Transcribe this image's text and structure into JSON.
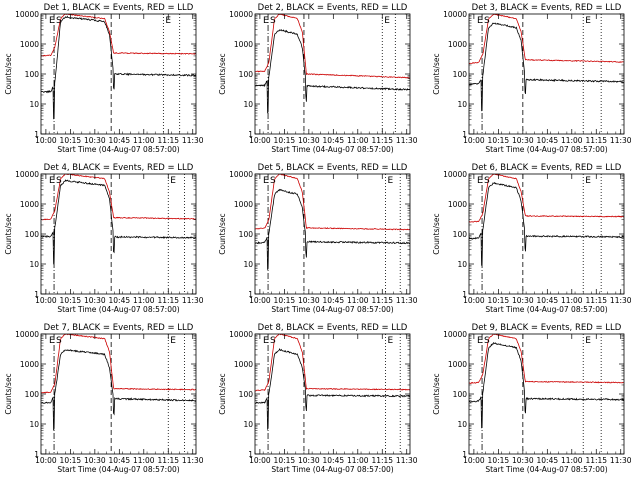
{
  "figure": {
    "background": "#ffffff",
    "colors": {
      "events": "#000000",
      "lld": "#cc0000",
      "axes": "#000000"
    }
  },
  "common": {
    "xlabel": "Start Time (04-Aug-07 08:57:00)",
    "ylabel": "Counts/sec",
    "xtick_labels": [
      "10:00",
      "10:15",
      "10:30",
      "10:45",
      "11:00",
      "11:15",
      "11:30"
    ],
    "ytick_labels": [
      "1",
      "10",
      "100",
      "1000",
      "10000"
    ],
    "markers": [
      "E",
      "S",
      "E"
    ]
  },
  "chart_data": [
    {
      "type": "line",
      "title": "Det 1, BLACK = Events, RED = LLD",
      "xlabel": "Start Time (04-Aug-07 08:57:00)",
      "ylabel": "Counts/sec",
      "xlim_minutes": [
        0,
        95
      ],
      "ylim": [
        1,
        10000
      ],
      "log_y": true,
      "vlines_minutes": {
        "dash_dot": 8,
        "dashed": [
          43
        ],
        "dotted": [
          75,
          85
        ]
      },
      "series": [
        {
          "name": "BLACK = Events",
          "color": "#000000",
          "levels": {
            "pre": 25,
            "peak": 8000,
            "post": 100,
            "end": 90
          }
        },
        {
          "name": "RED = LLD",
          "color": "#cc0000",
          "levels": {
            "pre": 400,
            "peak": 10000,
            "post": 500,
            "end": 470
          }
        }
      ]
    },
    {
      "type": "line",
      "title": "Det 2, BLACK = Events, RED = LLD",
      "xlabel": "Start Time (04-Aug-07 08:57:00)",
      "ylabel": "Counts/sec",
      "xlim_minutes": [
        0,
        95
      ],
      "ylim": [
        1,
        10000
      ],
      "log_y": true,
      "vlines_minutes": {
        "dash_dot": 8,
        "dashed": [
          30
        ],
        "dotted": [
          78,
          86
        ]
      },
      "series": [
        {
          "name": "BLACK = Events",
          "color": "#000000",
          "levels": {
            "pre": 40,
            "peak": 3000,
            "post": 40,
            "end": 30
          }
        },
        {
          "name": "RED = LLD",
          "color": "#cc0000",
          "levels": {
            "pre": 120,
            "peak": 10000,
            "post": 100,
            "end": 75
          }
        }
      ]
    },
    {
      "type": "line",
      "title": "Det 3, BLACK = Events, RED = LLD",
      "xlabel": "Start Time (04-Aug-07 08:57:00)",
      "ylabel": "Counts/sec",
      "xlim_minutes": [
        0,
        95
      ],
      "ylim": [
        1,
        10000
      ],
      "log_y": true,
      "vlines_minutes": {
        "dash_dot": 8,
        "dashed": [
          33
        ],
        "dotted": [
          70,
          81
        ]
      },
      "series": [
        {
          "name": "BLACK = Events",
          "color": "#000000",
          "levels": {
            "pre": 45,
            "peak": 5000,
            "post": 65,
            "end": 55
          }
        },
        {
          "name": "RED = LLD",
          "color": "#cc0000",
          "levels": {
            "pre": 230,
            "peak": 10000,
            "post": 300,
            "end": 250
          }
        }
      ]
    },
    {
      "type": "line",
      "title": "Det 4, BLACK = Events, RED = LLD",
      "xlabel": "Start Time (04-Aug-07 08:57:00)",
      "ylabel": "Counts/sec",
      "xlim_minutes": [
        0,
        95
      ],
      "ylim": [
        1,
        10000
      ],
      "log_y": true,
      "vlines_minutes": {
        "dash_dot": 8,
        "dashed": [
          43
        ],
        "dotted": [
          78,
          88
        ]
      },
      "series": [
        {
          "name": "BLACK = Events",
          "color": "#000000",
          "levels": {
            "pre": 80,
            "peak": 6000,
            "post": 80,
            "end": 75
          }
        },
        {
          "name": "RED = LLD",
          "color": "#cc0000",
          "levels": {
            "pre": 300,
            "peak": 10000,
            "post": 350,
            "end": 320
          }
        }
      ]
    },
    {
      "type": "line",
      "title": "Det 5, BLACK = Events, RED = LLD",
      "xlabel": "Start Time (04-Aug-07 08:57:00)",
      "ylabel": "Counts/sec",
      "xlim_minutes": [
        0,
        95
      ],
      "ylim": [
        1,
        10000
      ],
      "log_y": true,
      "vlines_minutes": {
        "dash_dot": 8,
        "dashed": [
          30
        ],
        "dotted": [
          80,
          89
        ]
      },
      "series": [
        {
          "name": "BLACK = Events",
          "color": "#000000",
          "levels": {
            "pre": 50,
            "peak": 3000,
            "post": 55,
            "end": 50
          }
        },
        {
          "name": "RED = LLD",
          "color": "#cc0000",
          "levels": {
            "pre": 150,
            "peak": 10000,
            "post": 160,
            "end": 140
          }
        }
      ]
    },
    {
      "type": "line",
      "title": "Det 6, BLACK = Events, RED = LLD",
      "xlabel": "Start Time (04-Aug-07 08:57:00)",
      "ylabel": "Counts/sec",
      "xlim_minutes": [
        0,
        95
      ],
      "ylim": [
        1,
        10000
      ],
      "log_y": true,
      "vlines_minutes": {
        "dash_dot": 8,
        "dashed": [
          33
        ],
        "dotted": [
          70,
          81
        ]
      },
      "series": [
        {
          "name": "BLACK = Events",
          "color": "#000000",
          "levels": {
            "pre": 70,
            "peak": 5000,
            "post": 85,
            "end": 80
          }
        },
        {
          "name": "RED = LLD",
          "color": "#cc0000",
          "levels": {
            "pre": 250,
            "peak": 10000,
            "post": 400,
            "end": 380
          }
        }
      ]
    },
    {
      "type": "line",
      "title": "Det 7, BLACK = Events, RED = LLD",
      "xlabel": "Start Time (04-Aug-07 08:57:00)",
      "ylabel": "Counts/sec",
      "xlim_minutes": [
        0,
        95
      ],
      "ylim": [
        1,
        10000
      ],
      "log_y": true,
      "vlines_minutes": {
        "dash_dot": 8,
        "dashed": [
          43
        ],
        "dotted": [
          78,
          88
        ]
      },
      "series": [
        {
          "name": "BLACK = Events",
          "color": "#000000",
          "levels": {
            "pre": 50,
            "peak": 3000,
            "post": 70,
            "end": 60
          }
        },
        {
          "name": "RED = LLD",
          "color": "#cc0000",
          "levels": {
            "pre": 110,
            "peak": 10000,
            "post": 150,
            "end": 140
          }
        }
      ]
    },
    {
      "type": "line",
      "title": "Det 8, BLACK = Events, RED = LLD",
      "xlabel": "Start Time (04-Aug-07 08:57:00)",
      "ylabel": "Counts/sec",
      "xlim_minutes": [
        0,
        95
      ],
      "ylim": [
        1,
        10000
      ],
      "log_y": true,
      "vlines_minutes": {
        "dash_dot": 8,
        "dashed": [
          30
        ],
        "dotted": [
          80,
          89
        ]
      },
      "series": [
        {
          "name": "BLACK = Events",
          "color": "#000000",
          "levels": {
            "pre": 50,
            "peak": 3000,
            "post": 90,
            "end": 85
          }
        },
        {
          "name": "RED = LLD",
          "color": "#cc0000",
          "levels": {
            "pre": 130,
            "peak": 10000,
            "post": 150,
            "end": 140
          }
        }
      ]
    },
    {
      "type": "line",
      "title": "Det 9, BLACK = Events, RED = LLD",
      "xlabel": "Start Time (04-Aug-07 08:57:00)",
      "ylabel": "Counts/sec",
      "xlim_minutes": [
        0,
        95
      ],
      "ylim": [
        1,
        10000
      ],
      "log_y": true,
      "vlines_minutes": {
        "dash_dot": 8,
        "dashed": [
          33
        ],
        "dotted": [
          70,
          81
        ]
      },
      "series": [
        {
          "name": "BLACK = Events",
          "color": "#000000",
          "levels": {
            "pre": 55,
            "peak": 5000,
            "post": 70,
            "end": 65
          }
        },
        {
          "name": "RED = LLD",
          "color": "#cc0000",
          "levels": {
            "pre": 230,
            "peak": 10000,
            "post": 260,
            "end": 240
          }
        }
      ]
    }
  ]
}
